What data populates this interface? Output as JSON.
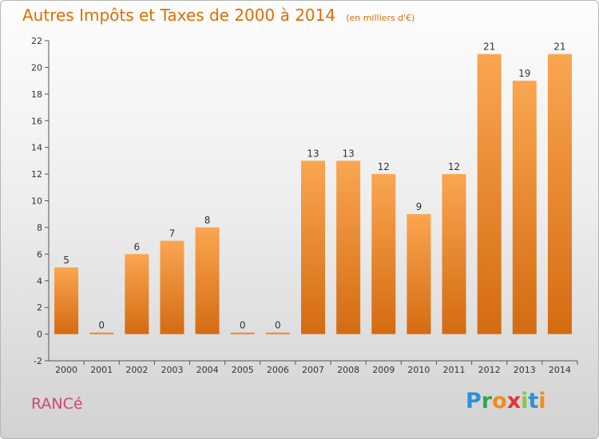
{
  "title": "Autres Impôts et Taxes de 2000 à 2014",
  "subtitle": "(en milliers d'€)",
  "place_name": "RANCé",
  "logo": {
    "text": "Proxiti",
    "letters": [
      "P",
      "r",
      "o",
      "x",
      "i",
      "t",
      "i"
    ],
    "colors": [
      "#2f8fd8",
      "#2fa84a",
      "#f28c1c",
      "#e2343a",
      "#8cc63e",
      "#2f8fd8",
      "#f28c1c"
    ]
  },
  "colors": {
    "bar_light": "#faa650",
    "bar_dark": "#d46b12",
    "text": "#333333"
  },
  "chart_data": {
    "type": "bar",
    "categories": [
      "2000",
      "2001",
      "2002",
      "2003",
      "2004",
      "2005",
      "2006",
      "2007",
      "2008",
      "2009",
      "2010",
      "2011",
      "2012",
      "2013",
      "2014"
    ],
    "values": [
      5,
      0,
      6,
      7,
      8,
      0,
      0,
      13,
      13,
      12,
      9,
      12,
      21,
      19,
      21
    ],
    "data_labels": [
      "5",
      "0",
      "6",
      "7",
      "8",
      "0",
      "0",
      "13",
      "13",
      "12",
      "9",
      "12",
      "21",
      "19",
      "21"
    ],
    "yticks": [
      -2,
      0,
      2,
      4,
      6,
      8,
      10,
      12,
      14,
      16,
      18,
      20,
      22
    ],
    "ylim": [
      -2,
      22
    ],
    "grid": false,
    "title": "Autres Impôts et Taxes de 2000 à 2014",
    "ylabel": "",
    "xlabel": ""
  }
}
